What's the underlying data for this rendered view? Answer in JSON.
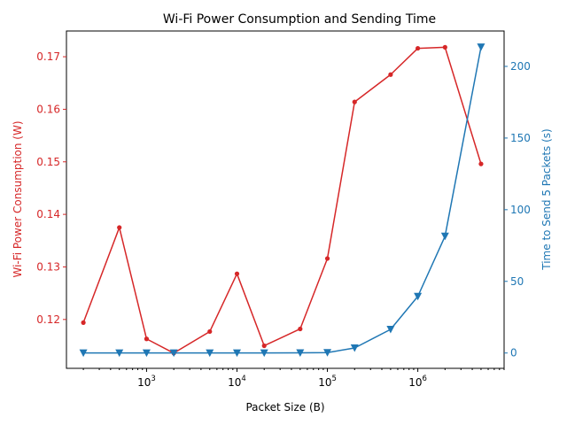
{
  "chart_data": {
    "type": "line",
    "title": "Wi-Fi Power Consumption and Sending Time",
    "xlabel": "Packet Size (B)",
    "xscale": "log",
    "xlim": [
      130,
      9000000
    ],
    "xticks": [
      {
        "value": 1000,
        "base": "10",
        "exp": "3"
      },
      {
        "value": 10000,
        "base": "10",
        "exp": "4"
      },
      {
        "value": 100000,
        "base": "10",
        "exp": "5"
      },
      {
        "value": 1000000,
        "base": "10",
        "exp": "6"
      }
    ],
    "x": [
      200,
      500,
      1000,
      2000,
      5000,
      10000,
      20000,
      50000,
      100000,
      200000,
      500000,
      1000000,
      2000000,
      5000000
    ],
    "y_left": {
      "label": "Wi-Fi Power Consumption (W)",
      "color": "#d62728",
      "lim": [
        0.1107,
        0.1749
      ],
      "ticks": [
        "0.12",
        "0.13",
        "0.14",
        "0.15",
        "0.16",
        "0.17"
      ]
    },
    "y_right": {
      "label": "Time to Send 5 Packets (s)",
      "color": "#1f77b4",
      "lim": [
        -10.7,
        224.7
      ],
      "ticks": [
        "0",
        "50",
        "100",
        "150",
        "200"
      ]
    },
    "series": [
      {
        "axis": "left",
        "marker": "dot",
        "color": "#d62728",
        "values": [
          0.1194,
          0.1375,
          0.1163,
          0.1136,
          0.1177,
          0.1287,
          0.115,
          0.1182,
          0.1316,
          0.1614,
          0.1666,
          0.1716,
          0.1718,
          0.1496
        ]
      },
      {
        "axis": "right",
        "marker": "triangle-down",
        "color": "#1f77b4",
        "values": [
          0,
          0,
          0,
          0,
          0,
          0,
          0,
          0.1,
          0.3,
          3.5,
          16.5,
          39.5,
          81.5,
          213.5
        ]
      }
    ]
  }
}
